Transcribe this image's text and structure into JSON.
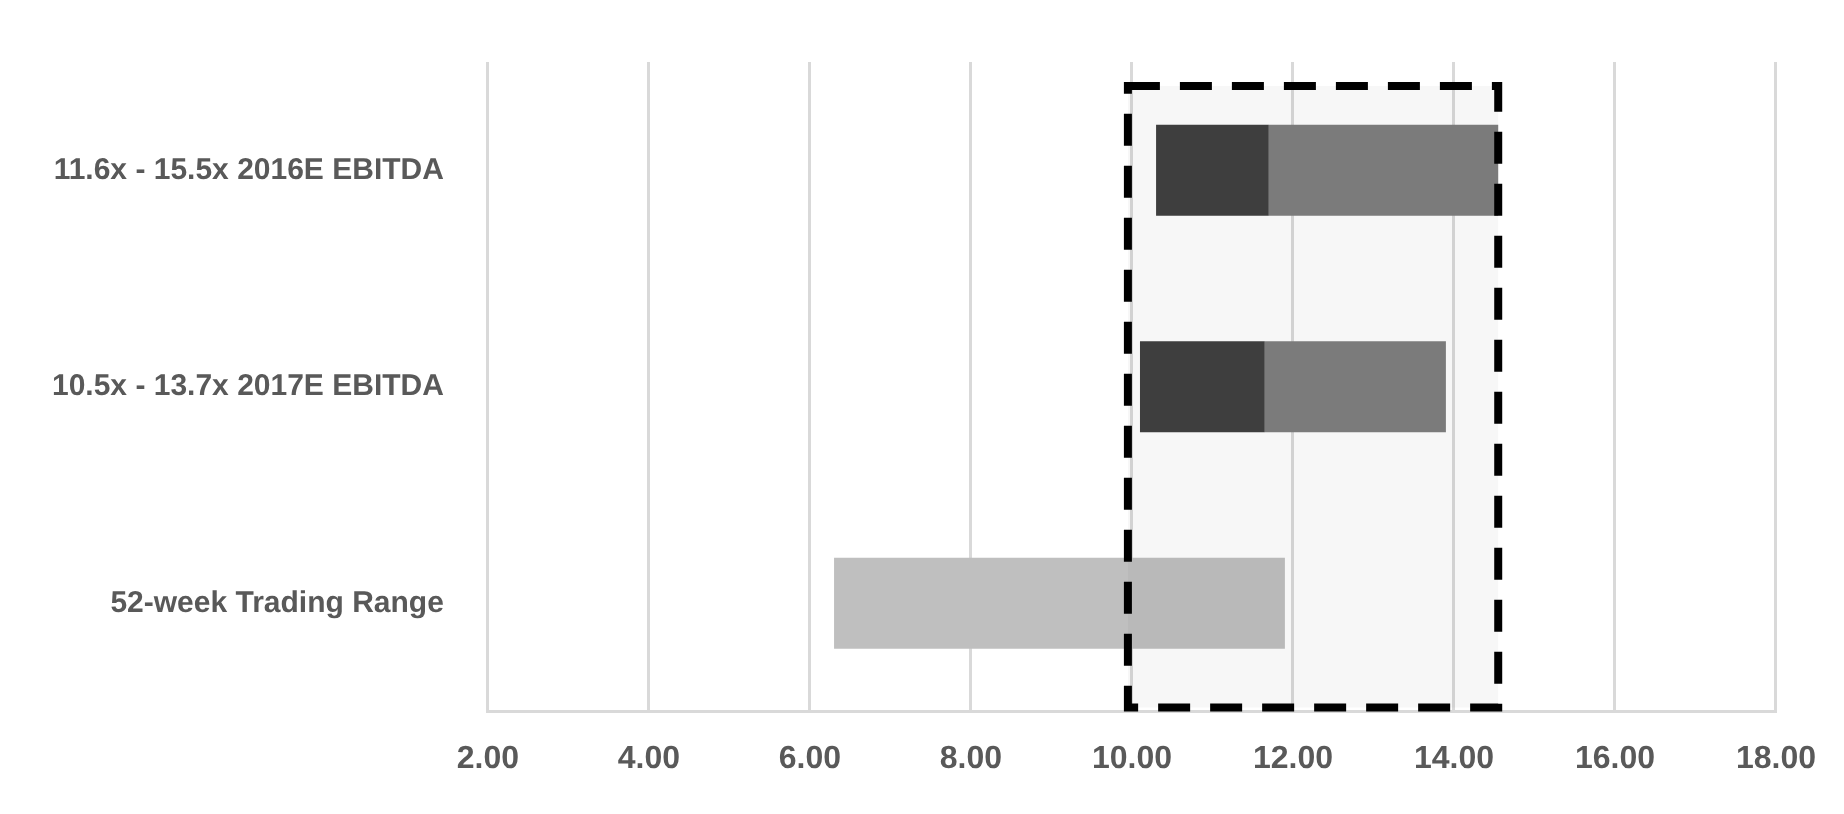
{
  "chart_data": {
    "type": "bar",
    "orientation": "horizontal",
    "categories": [
      "11.6x - 15.5x 2016E EBITDA",
      "10.5x - 13.7x 2017E EBITDA",
      "52-week Trading Range"
    ],
    "series": [
      {
        "color": "#404040",
        "base": [
          10.3,
          10.1,
          null
        ],
        "values": [
          1.4,
          1.55,
          null
        ]
      },
      {
        "color": "#7f7f7f",
        "base": [
          11.7,
          11.65,
          null
        ],
        "values": [
          2.85,
          2.25,
          null
        ]
      },
      {
        "color": "#bfbfbf",
        "base": [
          null,
          null,
          6.3
        ],
        "values": [
          null,
          null,
          5.6
        ]
      }
    ],
    "xlim": [
      2,
      18
    ],
    "xticks": [
      {
        "value": 2,
        "label": "2.00"
      },
      {
        "value": 4,
        "label": "4.00"
      },
      {
        "value": 6,
        "label": "6.00"
      },
      {
        "value": 8,
        "label": "8.00"
      },
      {
        "value": 10,
        "label": "10.00"
      },
      {
        "value": 12,
        "label": "12.00"
      },
      {
        "value": 14,
        "label": "14.00"
      },
      {
        "value": 16,
        "label": "16.00"
      },
      {
        "value": 18,
        "label": "18.00"
      }
    ],
    "grid": "x",
    "legend": false,
    "bands": [
      {
        "axis": "x",
        "from": 9.95,
        "to": 14.55,
        "color": "#000000"
      }
    ]
  }
}
